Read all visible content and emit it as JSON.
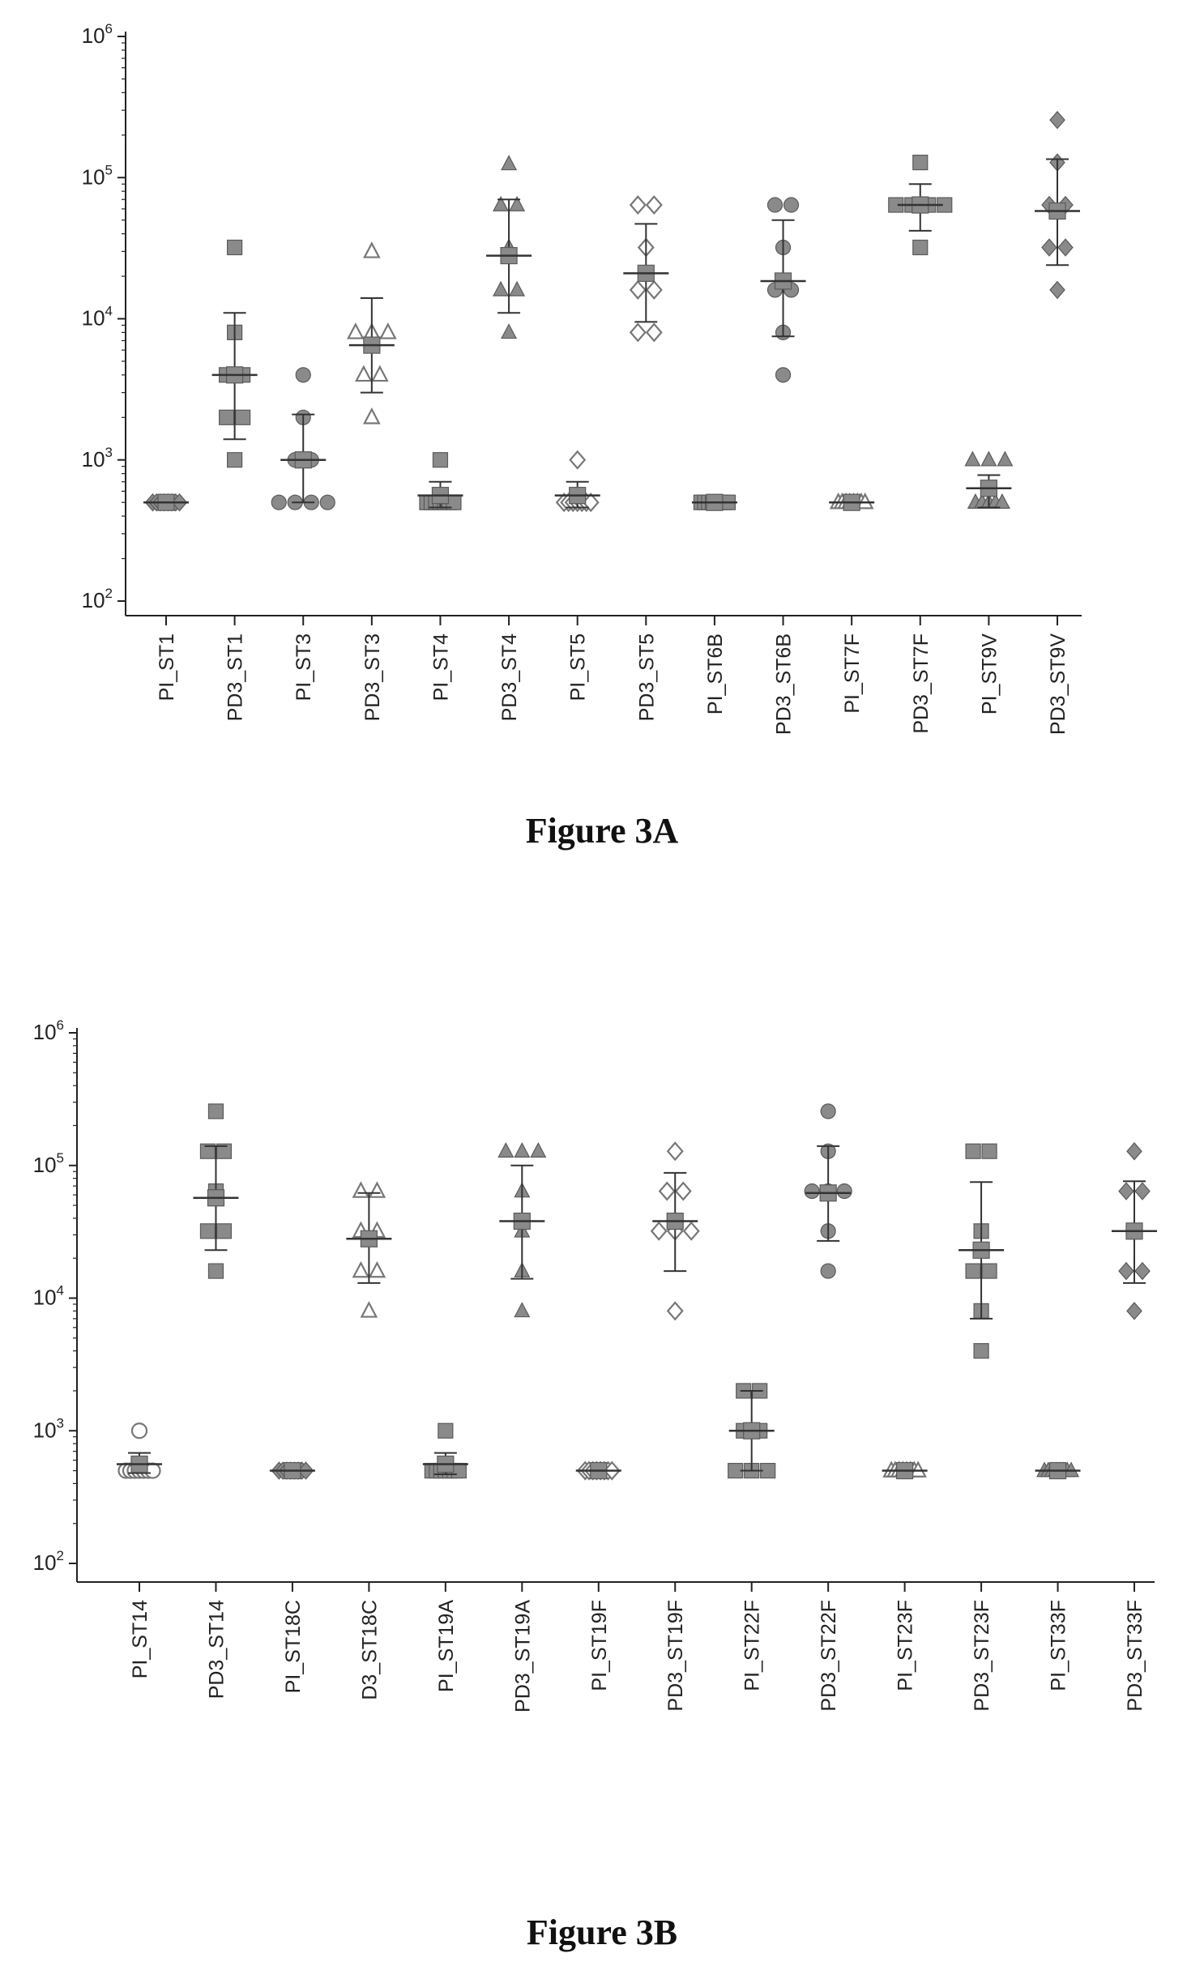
{
  "figures": [
    {
      "caption": "Figure 3A",
      "chart_data": {
        "type": "scatter",
        "yscale": "log",
        "ylim": [
          100,
          1000000
        ],
        "yticks": [
          {
            "value": 100,
            "label": "10^2"
          },
          {
            "value": 1000,
            "label": "10^3"
          },
          {
            "value": 10000,
            "label": "10^4"
          },
          {
            "value": 100000,
            "label": "10^5"
          },
          {
            "value": 1000000,
            "label": "10^6"
          }
        ],
        "categories": [
          "PI_ST1",
          "PD3_ST1",
          "PI_ST3",
          "PD3_ST3",
          "PI_ST4",
          "PD3_ST4",
          "PI_ST5",
          "PD3_ST5",
          "PI_ST6B",
          "PD3_ST6B",
          "PI_ST7F",
          "PD3_ST7F",
          "PI_ST9V",
          "PD3_ST9V"
        ],
        "series": [
          {
            "category": "PI_ST1",
            "marker": "diamond",
            "points": [
              500,
              500,
              500,
              500,
              500,
              500,
              500,
              500
            ],
            "mean": 500,
            "err": [
              500,
              500
            ]
          },
          {
            "category": "PD3_ST1",
            "marker": "square",
            "points": [
              32000,
              8000,
              4000,
              4000,
              2000,
              2000,
              1000
            ],
            "mean": 4000,
            "err": [
              1400,
              11000
            ]
          },
          {
            "category": "PI_ST3",
            "marker": "circle",
            "points": [
              4000,
              2000,
              1000,
              1000,
              500,
              500,
              500,
              500
            ],
            "mean": 1000,
            "err": [
              500,
              2100
            ]
          },
          {
            "category": "PD3_ST3",
            "marker": "triangle-open",
            "points": [
              30000,
              8000,
              8000,
              8000,
              4000,
              4000,
              2000
            ],
            "mean": 6500,
            "err": [
              3000,
              14000
            ]
          },
          {
            "category": "PI_ST4",
            "marker": "square",
            "points": [
              1000,
              500,
              500,
              500,
              500,
              500,
              500,
              500
            ],
            "mean": 560,
            "err": [
              460,
              700
            ]
          },
          {
            "category": "PD3_ST4",
            "marker": "triangle",
            "points": [
              125000,
              64000,
              64000,
              32000,
              16000,
              16000,
              8000
            ],
            "mean": 28000,
            "err": [
              11000,
              70000
            ]
          },
          {
            "category": "PI_ST5",
            "marker": "diamond-open",
            "points": [
              1000,
              500,
              500,
              500,
              500,
              500,
              500,
              500
            ],
            "mean": 560,
            "err": [
              460,
              700
            ]
          },
          {
            "category": "PD3_ST5",
            "marker": "diamond-open",
            "points": [
              64000,
              64000,
              32000,
              16000,
              16000,
              8000,
              8000
            ],
            "mean": 21000,
            "err": [
              9500,
              47000
            ]
          },
          {
            "category": "PI_ST6B",
            "marker": "square",
            "points": [
              500,
              500,
              500,
              500,
              500,
              500,
              500,
              500
            ],
            "mean": 500,
            "err": [
              500,
              500
            ]
          },
          {
            "category": "PD3_ST6B",
            "marker": "circle",
            "points": [
              64000,
              64000,
              32000,
              16000,
              16000,
              8000,
              4000
            ],
            "mean": 18500,
            "err": [
              7500,
              50000
            ]
          },
          {
            "category": "PI_ST7F",
            "marker": "triangle-open",
            "points": [
              500,
              500,
              500,
              500,
              500,
              500,
              500,
              500
            ],
            "mean": 500,
            "err": [
              500,
              500
            ]
          },
          {
            "category": "PD3_ST7F",
            "marker": "square",
            "points": [
              128000,
              64000,
              64000,
              64000,
              64000,
              32000
            ],
            "mean": 64000,
            "err": [
              42000,
              90000
            ]
          },
          {
            "category": "PI_ST9V",
            "marker": "triangle",
            "points": [
              1000,
              1000,
              1000,
              500,
              500,
              500,
              500,
              500
            ],
            "mean": 630,
            "err": [
              460,
              780
            ]
          },
          {
            "category": "PD3_ST9V",
            "marker": "diamond",
            "points": [
              256000,
              128000,
              64000,
              64000,
              32000,
              32000,
              16000
            ],
            "mean": 58000,
            "err": [
              24000,
              135000
            ]
          }
        ]
      }
    },
    {
      "caption": "Figure 3B",
      "chart_data": {
        "type": "scatter",
        "yscale": "log",
        "ylim": [
          100,
          1000000
        ],
        "yticks": [
          {
            "value": 100,
            "label": "10^2"
          },
          {
            "value": 1000,
            "label": "10^3"
          },
          {
            "value": 10000,
            "label": "10^4"
          },
          {
            "value": 100000,
            "label": "10^5"
          },
          {
            "value": 1000000,
            "label": "10^6"
          }
        ],
        "categories": [
          "PI_ST14",
          "PD3_ST14",
          "PI_ST18C",
          "D3_ST18C",
          "PI_ST19A",
          "PD3_ST19A",
          "PI_ST19F",
          "PD3_ST19F",
          "PI_ST22F",
          "PD3_ST22F",
          "PI_ST23F",
          "PD3_ST23F",
          "PI_ST33F",
          "PD3_ST33F"
        ],
        "series": [
          {
            "category": "PI_ST14",
            "marker": "circle-open",
            "points": [
              1000,
              500,
              500,
              500,
              500,
              500,
              500,
              500
            ],
            "mean": 560,
            "err": [
              480,
              680
            ]
          },
          {
            "category": "PD3_ST14",
            "marker": "square",
            "points": [
              256000,
              128000,
              128000,
              64000,
              32000,
              32000,
              16000
            ],
            "mean": 57000,
            "err": [
              23000,
              140000
            ]
          },
          {
            "category": "PI_ST18C",
            "marker": "diamond",
            "points": [
              500,
              500,
              500,
              500,
              500,
              500,
              500,
              500
            ],
            "mean": 500,
            "err": [
              500,
              500
            ]
          },
          {
            "category": "D3_ST18C",
            "marker": "triangle-open",
            "points": [
              64000,
              64000,
              32000,
              32000,
              16000,
              16000,
              8000
            ],
            "mean": 28000,
            "err": [
              13000,
              62000
            ]
          },
          {
            "category": "PI_ST19A",
            "marker": "square",
            "points": [
              1000,
              500,
              500,
              500,
              500,
              500,
              500,
              500
            ],
            "mean": 560,
            "err": [
              470,
              680
            ]
          },
          {
            "category": "PD3_ST19A",
            "marker": "triangle",
            "points": [
              128000,
              128000,
              128000,
              64000,
              32000,
              16000,
              8000
            ],
            "mean": 38000,
            "err": [
              14000,
              100000
            ]
          },
          {
            "category": "PI_ST19F",
            "marker": "diamond-open",
            "points": [
              500,
              500,
              500,
              500,
              500,
              500,
              500,
              500
            ],
            "mean": 500,
            "err": [
              500,
              500
            ]
          },
          {
            "category": "PD3_ST19F",
            "marker": "diamond-open",
            "points": [
              128000,
              64000,
              64000,
              32000,
              32000,
              32000,
              8000
            ],
            "mean": 38000,
            "err": [
              16000,
              88000
            ]
          },
          {
            "category": "PI_ST22F",
            "marker": "square",
            "points": [
              2000,
              2000,
              1000,
              1000,
              500,
              500,
              500
            ],
            "mean": 1000,
            "err": [
              500,
              2000
            ]
          },
          {
            "category": "PD3_ST22F",
            "marker": "circle",
            "points": [
              256000,
              128000,
              64000,
              64000,
              64000,
              32000,
              16000
            ],
            "mean": 62000,
            "err": [
              27000,
              140000
            ]
          },
          {
            "category": "PI_ST23F",
            "marker": "triangle-open",
            "points": [
              500,
              500,
              500,
              500,
              500,
              500,
              500,
              500
            ],
            "mean": 500,
            "err": [
              500,
              500
            ]
          },
          {
            "category": "PD3_ST23F",
            "marker": "square",
            "points": [
              128000,
              128000,
              32000,
              16000,
              16000,
              8000,
              4000
            ],
            "mean": 23000,
            "err": [
              7000,
              75000
            ]
          },
          {
            "category": "PI_ST33F",
            "marker": "triangle",
            "points": [
              500,
              500,
              500,
              500,
              500,
              500,
              500,
              500
            ],
            "mean": 500,
            "err": [
              500,
              500
            ]
          },
          {
            "category": "PD3_ST33F",
            "marker": "diamond",
            "points": [
              128000,
              64000,
              64000,
              32000,
              16000,
              16000,
              8000
            ],
            "mean": 32000,
            "err": [
              13000,
              76000
            ]
          }
        ]
      }
    }
  ],
  "colors": {
    "axis": "#222222",
    "marker_fill": "#8a8a8a",
    "marker_stroke": "#5a5a5a",
    "open_marker_stroke": "#777777",
    "errorbar": "#333333"
  }
}
